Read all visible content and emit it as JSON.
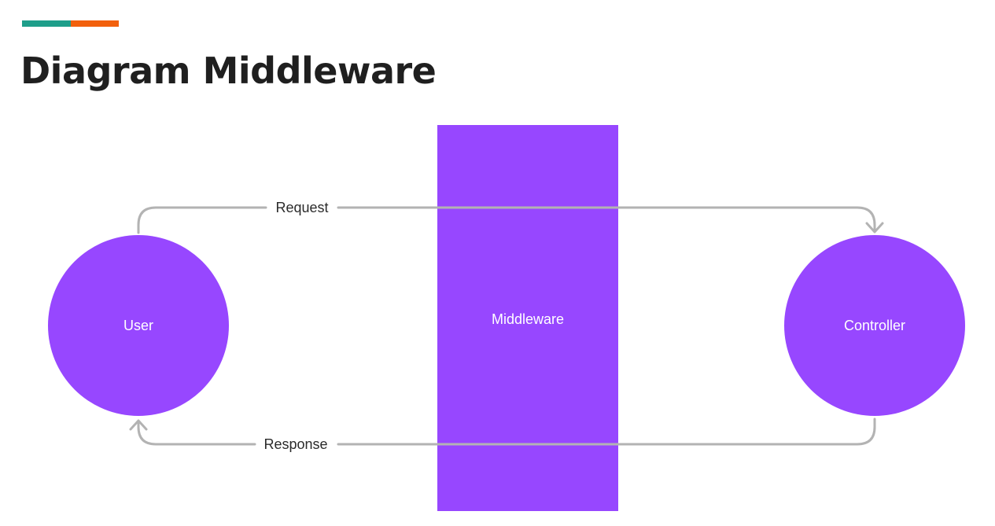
{
  "header": {
    "title": "Diagram Middleware",
    "accent_colors": [
      "#1e9e8a",
      "#f2600c"
    ]
  },
  "diagram": {
    "node_color": "#9747ff",
    "edge_color": "#b3b3b3",
    "nodes": {
      "user": {
        "label": "User",
        "shape": "circle"
      },
      "middleware": {
        "label": "Middleware",
        "shape": "rectangle"
      },
      "controller": {
        "label": "Controller",
        "shape": "circle"
      }
    },
    "edges": {
      "request": {
        "label": "Request",
        "from": "User",
        "to": "Controller"
      },
      "response": {
        "label": "Response",
        "from": "Controller",
        "to": "User"
      }
    }
  }
}
